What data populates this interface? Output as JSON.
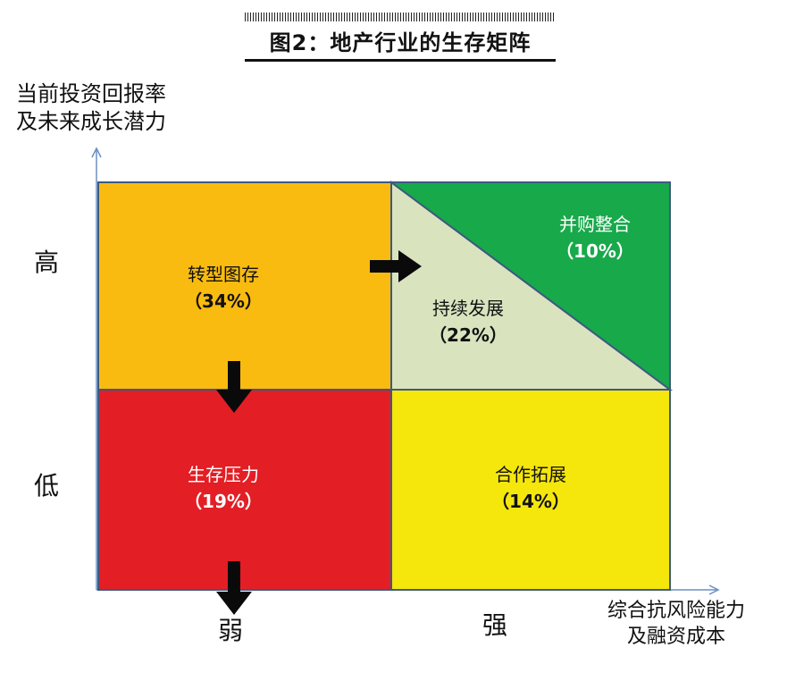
{
  "title": "图2：地产行业的生存矩阵",
  "y_axis": {
    "label_line1": "当前投资回报率",
    "label_line2": "及未来成长潜力",
    "high": "高",
    "low": "低"
  },
  "x_axis": {
    "label_line1": "综合抗风险能力",
    "label_line2": "及融资成本",
    "weak": "弱",
    "strong": "强"
  },
  "quadrants": {
    "transform": {
      "name": "转型图存",
      "pct": "（34%）",
      "color": "#f9bb10"
    },
    "sustain": {
      "name": "持续发展",
      "pct": "（22%）",
      "color": "#d9e4bf"
    },
    "merge": {
      "name": "并购整合",
      "pct": "（10%）",
      "color": "#17a94a"
    },
    "pressure": {
      "name": "生存压力",
      "pct": "（19%）",
      "color": "#e31e25"
    },
    "expand": {
      "name": "合作拓展",
      "pct": "（14%）",
      "color": "#f5e60c"
    }
  }
}
